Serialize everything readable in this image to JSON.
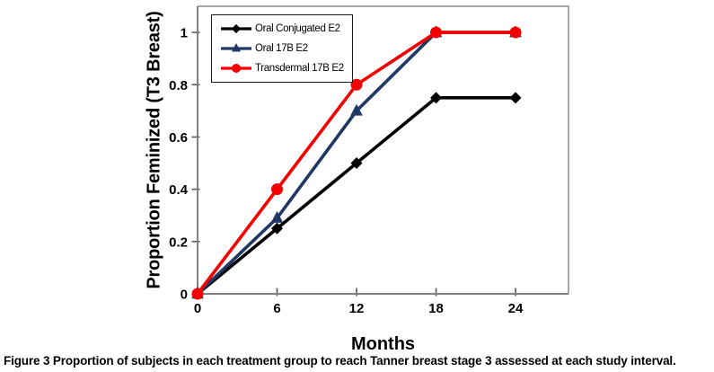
{
  "chart_data": {
    "type": "line",
    "x": [
      0,
      6,
      12,
      18,
      24
    ],
    "x_tick_labels": [
      "0",
      "6",
      "12",
      "18",
      "24"
    ],
    "y_tick_values": [
      0,
      0.2,
      0.4,
      0.6,
      0.8,
      1
    ],
    "y_tick_labels": [
      "0",
      "0.2",
      "0.4",
      "0.6",
      "0.8",
      "1"
    ],
    "series": [
      {
        "name": "Oral Conjugated E2",
        "color": "#000000",
        "marker": "diamond",
        "values": [
          0,
          0.25,
          0.5,
          0.75,
          0.75
        ]
      },
      {
        "name": "Oral 17B E2",
        "color": "#1f3864",
        "marker": "triangle",
        "values": [
          0,
          0.29,
          0.7,
          1,
          1
        ]
      },
      {
        "name": "Transdermal 17B E2",
        "color": "#f40000",
        "marker": "circle",
        "values": [
          0,
          0.4,
          0.8,
          1,
          1
        ]
      }
    ],
    "xlabel": "Months",
    "ylabel": "Proportion Feminized (T3 Breast)",
    "xlim": [
      0,
      28
    ],
    "ylim": [
      0,
      1.1
    ],
    "grid": false,
    "legend_position": "top-left"
  },
  "caption": {
    "label": "Figure 3",
    "text": "Proportion of subjects in each treatment group to reach Tanner breast stage 3 assessed at each study interval."
  },
  "colors": {
    "frame": "#8a8a8a",
    "axis": "#808080",
    "tick": "#595959",
    "text": "#000000",
    "legend_border": "#1a1a1a",
    "background": "#ffffff"
  }
}
